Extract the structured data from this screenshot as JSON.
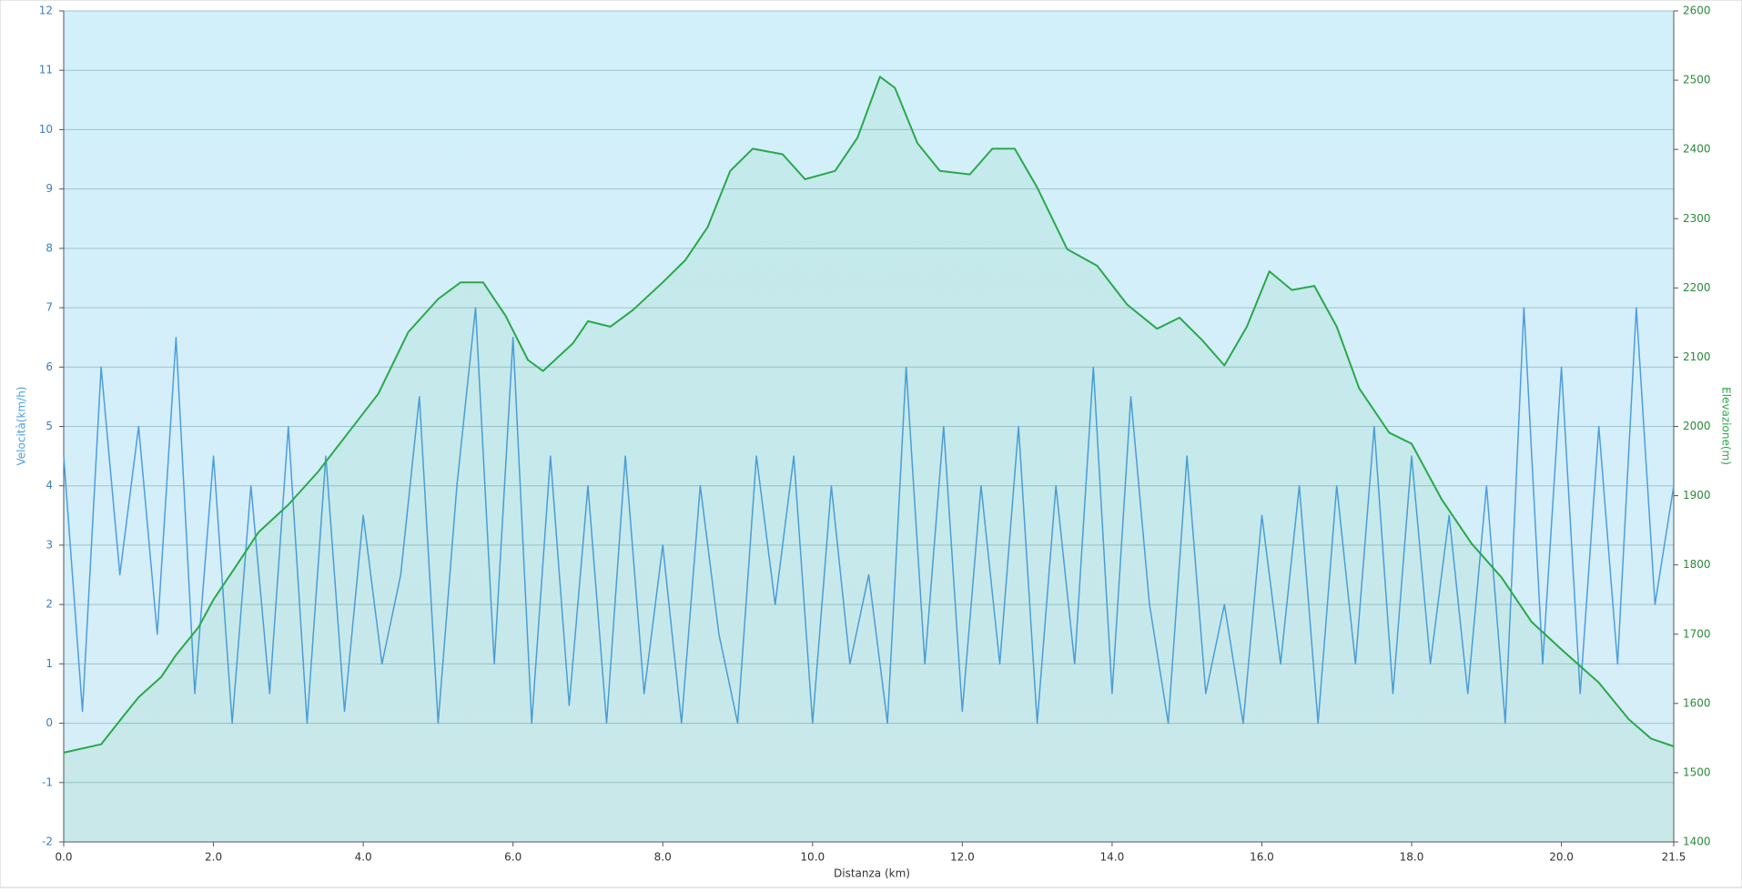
{
  "chart_data": {
    "type": "line",
    "xlabel": "Distanza  (km)",
    "ylabel": "Velocità(km/h)",
    "y2label": "Elevazione(m)",
    "xlim": [
      0,
      21.5
    ],
    "xticks": [
      {
        "value": 0,
        "label": "0.0"
      },
      {
        "value": 2,
        "label": "2.0"
      },
      {
        "value": 4,
        "label": "4.0"
      },
      {
        "value": 6,
        "label": "6.0"
      },
      {
        "value": 8,
        "label": "8.0"
      },
      {
        "value": 10,
        "label": "10.0"
      },
      {
        "value": 12,
        "label": "12.0"
      },
      {
        "value": 14,
        "label": "14.0"
      },
      {
        "value": 16,
        "label": "16.0"
      },
      {
        "value": 18,
        "label": "18.0"
      },
      {
        "value": 20,
        "label": "20.0"
      },
      21.5
    ],
    "ylim": [
      -2,
      12
    ],
    "yticks": [
      -2,
      -1,
      0,
      1,
      2,
      3,
      4,
      5,
      6,
      7,
      8,
      9,
      10,
      11,
      12
    ],
    "y2lim": [
      1400,
      2600
    ],
    "y2ticks": [
      1400,
      1500,
      1600,
      1700,
      1800,
      1900,
      2000,
      2100,
      2200,
      2300,
      2400,
      2500,
      2600
    ],
    "grid": true,
    "series": [
      {
        "name": "Elevazione",
        "color": "#2aa84a",
        "axis": "y2",
        "fill": true,
        "x": [
          0,
          0.5,
          0.8,
          1.0,
          1.3,
          1.5,
          1.8,
          2.0,
          2.3,
          2.6,
          3.0,
          3.4,
          3.8,
          4.2,
          4.6,
          5.0,
          5.3,
          5.6,
          5.9,
          6.2,
          6.4,
          6.8,
          7.0,
          7.3,
          7.6,
          8.0,
          8.3,
          8.6,
          8.9,
          9.2,
          9.6,
          9.9,
          10.3,
          10.6,
          10.9,
          11.1,
          11.4,
          11.7,
          12.1,
          12.4,
          12.7,
          13.0,
          13.4,
          13.8,
          14.2,
          14.6,
          14.9,
          15.2,
          15.5,
          15.8,
          16.1,
          16.4,
          16.7,
          17.0,
          17.3,
          17.7,
          18.0,
          18.4,
          18.8,
          19.2,
          19.6,
          20.0,
          20.5,
          20.9,
          21.2,
          21.5
        ],
        "values": [
          1529,
          1541,
          1582,
          1609,
          1638,
          1670,
          1710,
          1750,
          1798,
          1847,
          1887,
          1935,
          1991,
          2047,
          2136,
          2184,
          2208,
          2208,
          2160,
          2096,
          2080,
          2120,
          2152,
          2144,
          2168,
          2208,
          2240,
          2288,
          2369,
          2401,
          2393,
          2357,
          2369,
          2417,
          2505,
          2489,
          2409,
          2369,
          2364,
          2401,
          2401,
          2345,
          2256,
          2232,
          2176,
          2141,
          2157,
          2125,
          2088,
          2144,
          2224,
          2197,
          2203,
          2144,
          2055,
          1991,
          1975,
          1895,
          1831,
          1782,
          1718,
          1678,
          1630,
          1577,
          1549,
          1538
        ]
      },
      {
        "name": "Velocità",
        "color": "#4d9de0",
        "axis": "y",
        "x": [
          0,
          0.25,
          0.5,
          0.75,
          1.0,
          1.25,
          1.5,
          1.75,
          2.0,
          2.25,
          2.5,
          2.75,
          3.0,
          3.25,
          3.5,
          3.75,
          4.0,
          4.25,
          4.5,
          4.75,
          5.0,
          5.25,
          5.5,
          5.75,
          6.0,
          6.25,
          6.5,
          6.75,
          7.0,
          7.25,
          7.5,
          7.75,
          8.0,
          8.25,
          8.5,
          8.75,
          9.0,
          9.25,
          9.5,
          9.75,
          10.0,
          10.25,
          10.5,
          10.75,
          11.0,
          11.25,
          11.5,
          11.75,
          12.0,
          12.25,
          12.5,
          12.75,
          13.0,
          13.25,
          13.5,
          13.75,
          14.0,
          14.25,
          14.5,
          14.75,
          15.0,
          15.25,
          15.5,
          15.75,
          16.0,
          16.25,
          16.5,
          16.75,
          17.0,
          17.25,
          17.5,
          17.75,
          18.0,
          18.25,
          18.5,
          18.75,
          19.0,
          19.25,
          19.5,
          19.75,
          20.0,
          20.25,
          20.5,
          20.75,
          21.0,
          21.25,
          21.5
        ],
        "values": [
          4.5,
          0.2,
          6,
          2.5,
          5,
          1.5,
          6.5,
          0.5,
          4.5,
          0,
          4,
          0.5,
          5,
          0,
          4.5,
          0.2,
          3.5,
          1,
          2.5,
          5.5,
          0,
          4,
          7,
          1,
          6.5,
          0,
          4.5,
          0.3,
          4,
          0,
          4.5,
          0.5,
          3,
          0,
          4,
          1.5,
          0,
          4.5,
          2,
          4.5,
          0,
          4,
          1,
          2.5,
          0,
          6,
          1,
          5,
          0.2,
          4,
          1,
          5,
          0,
          4,
          1,
          6,
          0.5,
          5.5,
          2,
          0,
          4.5,
          0.5,
          2,
          0,
          3.5,
          1,
          4,
          0,
          4,
          1,
          5,
          0.5,
          4.5,
          1,
          3.5,
          0.5,
          4,
          0,
          7,
          1,
          6,
          0.5,
          5,
          1,
          7,
          2,
          4
        ]
      }
    ]
  }
}
